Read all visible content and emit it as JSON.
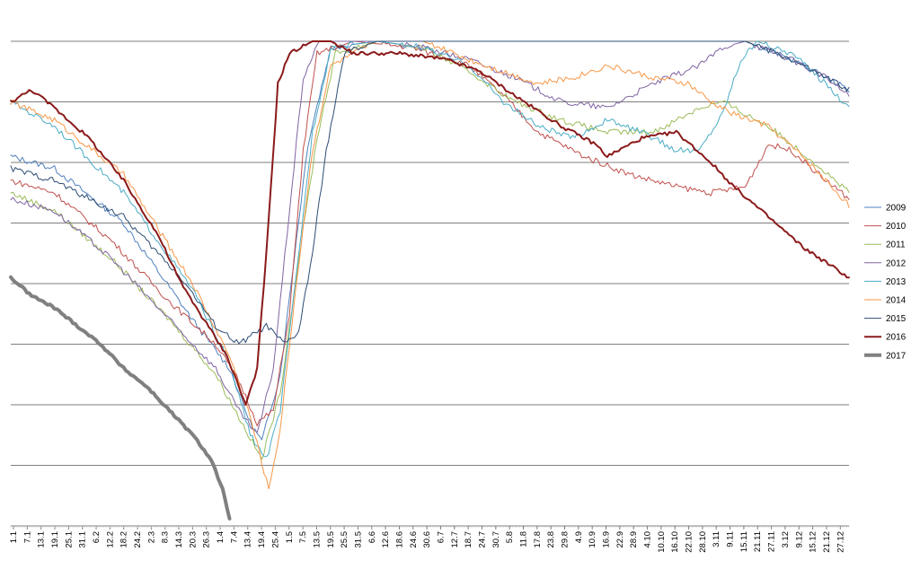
{
  "chart_data": {
    "type": "line",
    "title": "",
    "xlabel": "",
    "ylabel": "",
    "x_ticks": [
      "1.1",
      "7.1",
      "13.1",
      "19.1",
      "25.1",
      "31.1",
      "6.2",
      "12.2",
      "18.2",
      "24.2",
      "2.3",
      "8.3",
      "14.3",
      "20.3",
      "26.3",
      "1.4",
      "7.4",
      "13.4",
      "19.4",
      "25.4",
      "1.5",
      "7.5",
      "13.5",
      "19.5",
      "25.5",
      "31.5",
      "6.6",
      "12.6",
      "18.6",
      "24.6",
      "30.6",
      "6.7",
      "12.7",
      "18.7",
      "24.7",
      "30.7",
      "5.8",
      "11.8",
      "17.8",
      "23.8",
      "29.8",
      "4.9",
      "10.9",
      "16.9",
      "22.9",
      "28.9",
      "4.10",
      "10.10",
      "16.10",
      "22.10",
      "28.10",
      "3.11",
      "9.11",
      "15.11",
      "21.11",
      "27.11",
      "3.12",
      "9.12",
      "15.12",
      "21.12",
      "27.12"
    ],
    "x_unit": "day of year",
    "x_range": [
      1,
      365
    ],
    "y_gridlines": 8,
    "y_range": [
      0,
      8
    ],
    "grid": true,
    "legend": "right",
    "series": [
      {
        "name": "2009",
        "color": "#4f81bd",
        "width": 1,
        "points": [
          [
            1,
            6.1
          ],
          [
            20,
            5.9
          ],
          [
            50,
            5.0
          ],
          [
            80,
            3.4
          ],
          [
            96,
            2.6
          ],
          [
            105,
            1.7
          ],
          [
            110,
            1.4
          ],
          [
            118,
            2.5
          ],
          [
            124,
            4.4
          ],
          [
            130,
            6.3
          ],
          [
            140,
            7.9
          ],
          [
            160,
            8.0
          ],
          [
            180,
            8.0
          ],
          [
            200,
            8.0
          ],
          [
            230,
            8.0
          ],
          [
            260,
            8.0
          ],
          [
            290,
            8.0
          ],
          [
            320,
            8.0
          ],
          [
            340,
            7.7
          ],
          [
            355,
            7.4
          ],
          [
            365,
            7.2
          ]
        ]
      },
      {
        "name": "2010",
        "color": "#c0504d",
        "width": 1,
        "points": [
          [
            1,
            5.7
          ],
          [
            20,
            5.5
          ],
          [
            45,
            4.7
          ],
          [
            70,
            3.7
          ],
          [
            90,
            3.0
          ],
          [
            100,
            2.4
          ],
          [
            108,
            1.7
          ],
          [
            115,
            1.9
          ],
          [
            122,
            3.5
          ],
          [
            128,
            6.2
          ],
          [
            134,
            7.8
          ],
          [
            150,
            8.0
          ],
          [
            175,
            7.9
          ],
          [
            200,
            7.6
          ],
          [
            215,
            7.1
          ],
          [
            230,
            6.5
          ],
          [
            250,
            6.1
          ],
          [
            270,
            5.8
          ],
          [
            290,
            5.6
          ],
          [
            305,
            5.5
          ],
          [
            320,
            5.6
          ],
          [
            330,
            6.3
          ],
          [
            340,
            6.2
          ],
          [
            355,
            5.7
          ],
          [
            365,
            5.4
          ]
        ]
      },
      {
        "name": "2011",
        "color": "#9bbb59",
        "width": 1,
        "points": [
          [
            1,
            5.5
          ],
          [
            20,
            5.2
          ],
          [
            45,
            4.4
          ],
          [
            70,
            3.4
          ],
          [
            90,
            2.5
          ],
          [
            100,
            1.8
          ],
          [
            110,
            1.1
          ],
          [
            118,
            2.2
          ],
          [
            126,
            4.4
          ],
          [
            134,
            6.4
          ],
          [
            142,
            7.8
          ],
          [
            160,
            8.0
          ],
          [
            180,
            7.9
          ],
          [
            200,
            7.5
          ],
          [
            220,
            7.0
          ],
          [
            240,
            6.7
          ],
          [
            260,
            6.5
          ],
          [
            280,
            6.5
          ],
          [
            300,
            6.9
          ],
          [
            310,
            7.0
          ],
          [
            330,
            6.6
          ],
          [
            350,
            6.0
          ],
          [
            365,
            5.5
          ]
        ]
      },
      {
        "name": "2012",
        "color": "#8064a2",
        "width": 1,
        "points": [
          [
            1,
            5.4
          ],
          [
            20,
            5.2
          ],
          [
            45,
            4.4
          ],
          [
            70,
            3.4
          ],
          [
            90,
            2.6
          ],
          [
            100,
            1.9
          ],
          [
            108,
            1.5
          ],
          [
            115,
            2.6
          ],
          [
            122,
            5.2
          ],
          [
            128,
            7.4
          ],
          [
            135,
            8.0
          ],
          [
            160,
            8.0
          ],
          [
            180,
            7.9
          ],
          [
            200,
            7.7
          ],
          [
            220,
            7.4
          ],
          [
            240,
            7.0
          ],
          [
            260,
            6.9
          ],
          [
            280,
            7.3
          ],
          [
            300,
            7.6
          ],
          [
            310,
            7.9
          ],
          [
            320,
            8.0
          ],
          [
            340,
            7.7
          ],
          [
            355,
            7.4
          ],
          [
            365,
            7.1
          ]
        ]
      },
      {
        "name": "2013",
        "color": "#4bacc6",
        "width": 1,
        "points": [
          [
            1,
            7.0
          ],
          [
            20,
            6.6
          ],
          [
            50,
            5.5
          ],
          [
            80,
            3.9
          ],
          [
            96,
            2.7
          ],
          [
            105,
            1.5
          ],
          [
            112,
            1.1
          ],
          [
            118,
            1.9
          ],
          [
            124,
            3.8
          ],
          [
            132,
            6.5
          ],
          [
            140,
            7.9
          ],
          [
            160,
            8.0
          ],
          [
            180,
            7.9
          ],
          [
            200,
            7.6
          ],
          [
            215,
            7.0
          ],
          [
            230,
            6.6
          ],
          [
            245,
            6.4
          ],
          [
            260,
            6.7
          ],
          [
            275,
            6.5
          ],
          [
            290,
            6.2
          ],
          [
            300,
            6.2
          ],
          [
            310,
            6.8
          ],
          [
            318,
            7.7
          ],
          [
            325,
            8.0
          ],
          [
            340,
            7.8
          ],
          [
            355,
            7.3
          ],
          [
            365,
            6.9
          ]
        ]
      },
      {
        "name": "2014",
        "color": "#f79646",
        "width": 1,
        "points": [
          [
            1,
            7.0
          ],
          [
            20,
            6.7
          ],
          [
            50,
            5.8
          ],
          [
            80,
            4.0
          ],
          [
            96,
            2.8
          ],
          [
            105,
            1.8
          ],
          [
            113,
            0.6
          ],
          [
            118,
            1.6
          ],
          [
            125,
            4.0
          ],
          [
            132,
            6.2
          ],
          [
            140,
            7.6
          ],
          [
            160,
            8.0
          ],
          [
            180,
            8.0
          ],
          [
            200,
            7.7
          ],
          [
            215,
            7.5
          ],
          [
            230,
            7.3
          ],
          [
            245,
            7.4
          ],
          [
            260,
            7.6
          ],
          [
            280,
            7.4
          ],
          [
            295,
            7.3
          ],
          [
            305,
            7.0
          ],
          [
            315,
            6.8
          ],
          [
            330,
            6.6
          ],
          [
            345,
            6.1
          ],
          [
            365,
            5.3
          ]
        ]
      },
      {
        "name": "2015",
        "color": "#2c4d75",
        "width": 1,
        "points": [
          [
            1,
            5.9
          ],
          [
            20,
            5.7
          ],
          [
            50,
            5.1
          ],
          [
            75,
            4.1
          ],
          [
            90,
            3.3
          ],
          [
            100,
            3.0
          ],
          [
            112,
            3.3
          ],
          [
            120,
            3.0
          ],
          [
            126,
            3.2
          ],
          [
            132,
            4.5
          ],
          [
            138,
            6.2
          ],
          [
            146,
            7.8
          ],
          [
            160,
            8.0
          ],
          [
            180,
            8.0
          ],
          [
            200,
            8.0
          ],
          [
            230,
            8.0
          ],
          [
            260,
            8.0
          ],
          [
            290,
            8.0
          ],
          [
            320,
            8.0
          ],
          [
            340,
            7.7
          ],
          [
            355,
            7.4
          ],
          [
            365,
            7.2
          ]
        ]
      },
      {
        "name": "2016",
        "color": "#8b1a1a",
        "width": 2,
        "points": [
          [
            1,
            7.0
          ],
          [
            10,
            7.2
          ],
          [
            20,
            6.9
          ],
          [
            35,
            6.4
          ],
          [
            50,
            5.7
          ],
          [
            65,
            4.8
          ],
          [
            75,
            4.0
          ],
          [
            85,
            3.4
          ],
          [
            95,
            2.8
          ],
          [
            100,
            2.3
          ],
          [
            103,
            2.0
          ],
          [
            108,
            2.6
          ],
          [
            112,
            4.5
          ],
          [
            117,
            7.3
          ],
          [
            122,
            7.8
          ],
          [
            132,
            8.0
          ],
          [
            140,
            8.0
          ],
          [
            150,
            7.8
          ],
          [
            170,
            7.8
          ],
          [
            190,
            7.7
          ],
          [
            205,
            7.5
          ],
          [
            220,
            7.1
          ],
          [
            240,
            6.6
          ],
          [
            255,
            6.3
          ],
          [
            260,
            6.1
          ],
          [
            275,
            6.4
          ],
          [
            290,
            6.5
          ],
          [
            305,
            6.0
          ],
          [
            315,
            5.6
          ],
          [
            330,
            5.1
          ],
          [
            345,
            4.6
          ],
          [
            365,
            4.1
          ]
        ]
      },
      {
        "name": "2017",
        "color": "#808080",
        "width": 4,
        "points": [
          [
            1,
            4.1
          ],
          [
            10,
            3.8
          ],
          [
            20,
            3.6
          ],
          [
            30,
            3.3
          ],
          [
            40,
            3.0
          ],
          [
            50,
            2.6
          ],
          [
            60,
            2.3
          ],
          [
            70,
            1.9
          ],
          [
            80,
            1.5
          ],
          [
            88,
            1.1
          ],
          [
            93,
            0.6
          ],
          [
            96,
            0.1
          ]
        ]
      }
    ]
  }
}
